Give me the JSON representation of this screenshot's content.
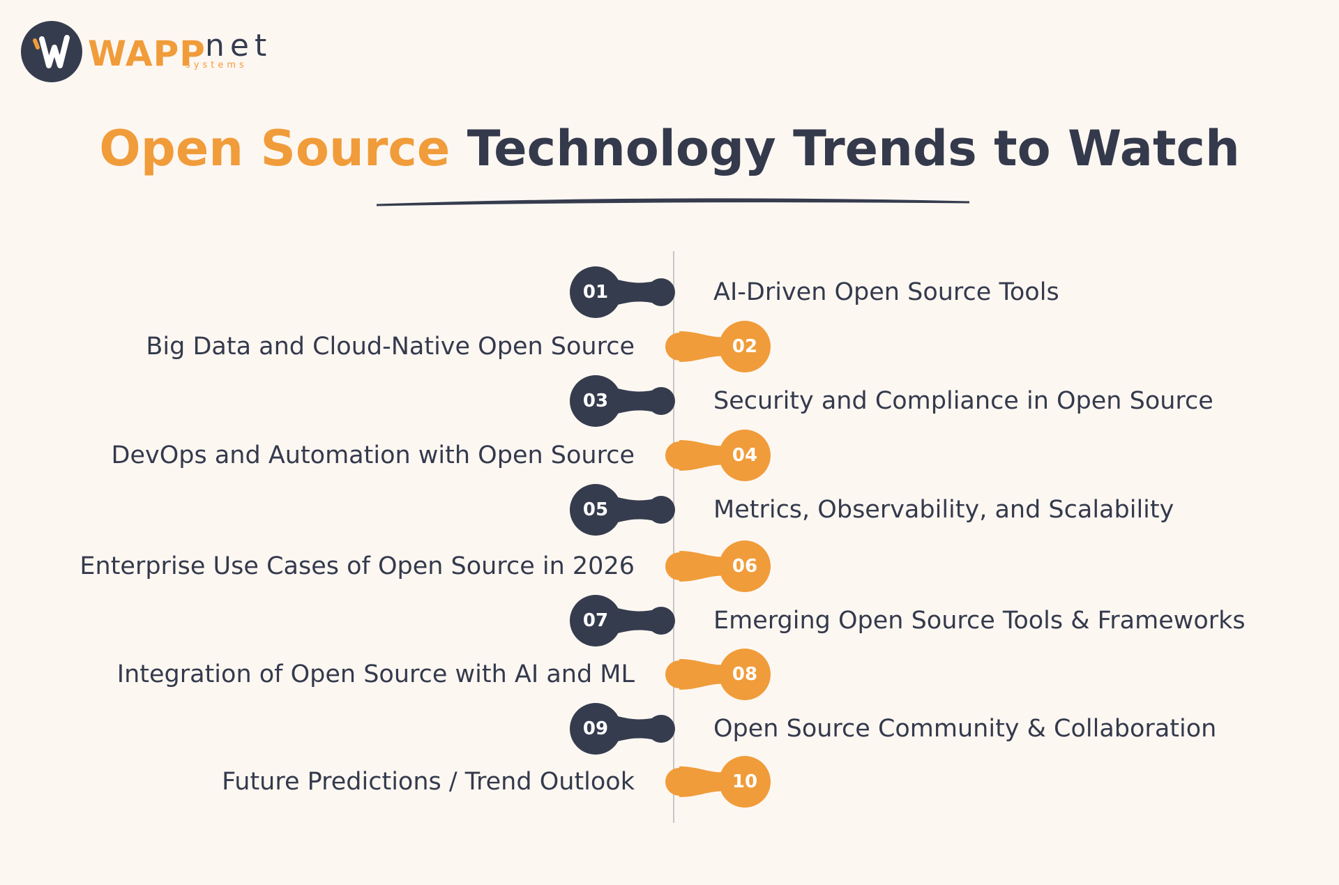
{
  "brand": {
    "name_primary": "WAPP",
    "name_secondary": "net",
    "tagline": "systems",
    "logo_icon": "wapp-w-logo-icon"
  },
  "title": {
    "accent": "Open Source",
    "rest": "Technology Trends to Watch"
  },
  "colors": {
    "background": "#fdf7f2",
    "dark": "#353c4e",
    "accent": "#f09c3a",
    "axis": "#c8c6c4"
  },
  "trends": [
    {
      "number": "01",
      "label": "AI-Driven Open Source Tools",
      "side": "right",
      "color": "dark"
    },
    {
      "number": "02",
      "label": "Big Data and Cloud-Native Open Source",
      "side": "left",
      "color": "accent"
    },
    {
      "number": "03",
      "label": "Security and Compliance in Open Source",
      "side": "right",
      "color": "dark"
    },
    {
      "number": "04",
      "label": "DevOps and Automation with Open Source",
      "side": "left",
      "color": "accent"
    },
    {
      "number": "05",
      "label": "Metrics, Observability, and Scalability",
      "side": "right",
      "color": "dark"
    },
    {
      "number": "06",
      "label": "Enterprise Use Cases of Open Source in 2026",
      "side": "left",
      "color": "accent"
    },
    {
      "number": "07",
      "label": "Emerging Open Source Tools & Frameworks",
      "side": "right",
      "color": "dark"
    },
    {
      "number": "08",
      "label": "Integration of Open Source with AI and ML",
      "side": "left",
      "color": "accent"
    },
    {
      "number": "09",
      "label": "Open Source Community & Collaboration",
      "side": "right",
      "color": "dark"
    },
    {
      "number": "10",
      "label": "Future Predictions / Trend Outlook",
      "side": "left",
      "color": "accent"
    }
  ]
}
